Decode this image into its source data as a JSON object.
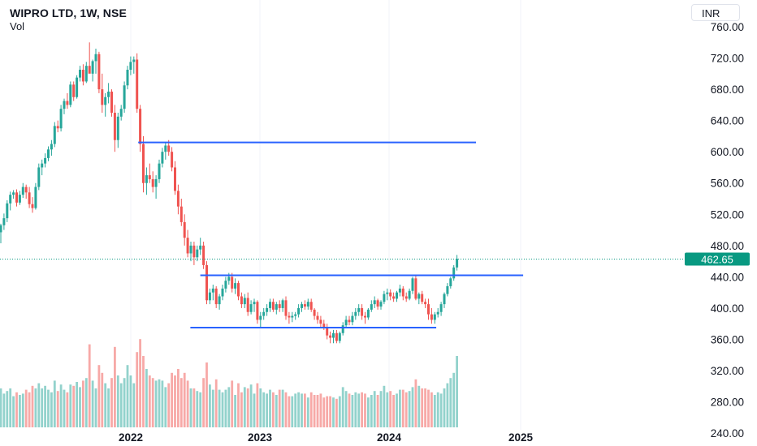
{
  "header": {
    "title": "WIPRO LTD, 1W, NSE",
    "volume_label": "Vol",
    "currency": "INR"
  },
  "colors": {
    "up": "#26a69a",
    "down": "#ef5350",
    "line": "#2962ff",
    "price_label": "#089981",
    "vol_up": "#26a69a",
    "vol_down": "#ef5350"
  },
  "chart_data": {
    "type": "candlestick",
    "x_ticks": [
      "2022",
      "2023",
      "2024",
      "2025"
    ],
    "y_ticks": [
      "760.00",
      "720.00",
      "680.00",
      "640.00",
      "600.00",
      "560.00",
      "520.00",
      "480.00",
      "440.00",
      "400.00",
      "360.00",
      "320.00",
      "280.00",
      "240.00"
    ],
    "ylim": [
      230,
      770
    ],
    "last_price": "462.65",
    "horizontal_lines": [
      {
        "name": "resistance-high",
        "y": 612,
        "x_from": "2022-01-24",
        "x_to": "2024-09-02"
      },
      {
        "name": "neckline",
        "y": 442,
        "x_from": "2022-07-18",
        "x_to": "2025-01-13"
      },
      {
        "name": "support-low",
        "y": 375,
        "x_from": "2022-06-20",
        "x_to": "2024-05-13"
      }
    ],
    "candles": [
      [
        497,
        508,
        483,
        506,
        0.3
      ],
      [
        506,
        521,
        500,
        515,
        0.26
      ],
      [
        515,
        538,
        510,
        534,
        0.28
      ],
      [
        534,
        549,
        525,
        545,
        0.3
      ],
      [
        545,
        551,
        540,
        548,
        0.24
      ],
      [
        548,
        552,
        530,
        535,
        0.27
      ],
      [
        535,
        550,
        532,
        545,
        0.25
      ],
      [
        545,
        560,
        541,
        555,
        0.26
      ],
      [
        555,
        558,
        540,
        548,
        0.29
      ],
      [
        548,
        555,
        528,
        533,
        0.27
      ],
      [
        533,
        542,
        522,
        528,
        0.32
      ],
      [
        528,
        560,
        526,
        555,
        0.3
      ],
      [
        555,
        585,
        551,
        580,
        0.34
      ],
      [
        580,
        590,
        570,
        585,
        0.3
      ],
      [
        585,
        598,
        580,
        592,
        0.32
      ],
      [
        592,
        607,
        588,
        603,
        0.29
      ],
      [
        603,
        615,
        595,
        610,
        0.27
      ],
      [
        610,
        638,
        606,
        633,
        0.36
      ],
      [
        633,
        640,
        625,
        630,
        0.28
      ],
      [
        630,
        660,
        626,
        655,
        0.33
      ],
      [
        655,
        668,
        648,
        665,
        0.29
      ],
      [
        665,
        675,
        655,
        660,
        0.27
      ],
      [
        660,
        690,
        657,
        686,
        0.33
      ],
      [
        686,
        690,
        665,
        670,
        0.32
      ],
      [
        670,
        698,
        668,
        695,
        0.35
      ],
      [
        695,
        710,
        690,
        705,
        0.31
      ],
      [
        705,
        712,
        685,
        690,
        0.36
      ],
      [
        690,
        715,
        688,
        710,
        0.38
      ],
      [
        710,
        740,
        705,
        700,
        0.64
      ],
      [
        700,
        718,
        690,
        716,
        0.36
      ],
      [
        716,
        732,
        700,
        725,
        0.3
      ],
      [
        725,
        728,
        675,
        680,
        0.48
      ],
      [
        680,
        700,
        650,
        660,
        0.42
      ],
      [
        660,
        675,
        645,
        670,
        0.34
      ],
      [
        670,
        688,
        662,
        677,
        0.3
      ],
      [
        677,
        680,
        645,
        650,
        0.38
      ],
      [
        650,
        660,
        600,
        615,
        0.62
      ],
      [
        615,
        650,
        605,
        645,
        0.4
      ],
      [
        645,
        660,
        640,
        655,
        0.34
      ],
      [
        655,
        690,
        650,
        685,
        0.38
      ],
      [
        685,
        710,
        680,
        705,
        0.48
      ],
      [
        705,
        722,
        698,
        715,
        0.4
      ],
      [
        715,
        722,
        700,
        718,
        0.34
      ],
      [
        718,
        726,
        650,
        655,
        0.58
      ],
      [
        655,
        660,
        600,
        610,
        0.68
      ],
      [
        610,
        620,
        548,
        560,
        0.55
      ],
      [
        560,
        580,
        545,
        570,
        0.45
      ],
      [
        570,
        585,
        560,
        565,
        0.4
      ],
      [
        565,
        575,
        548,
        555,
        0.38
      ],
      [
        555,
        570,
        540,
        565,
        0.36
      ],
      [
        565,
        590,
        560,
        585,
        0.37
      ],
      [
        585,
        605,
        580,
        600,
        0.36
      ],
      [
        600,
        612,
        590,
        608,
        0.31
      ],
      [
        608,
        615,
        595,
        600,
        0.34
      ],
      [
        600,
        606,
        575,
        580,
        0.42
      ],
      [
        580,
        588,
        545,
        550,
        0.4
      ],
      [
        550,
        558,
        520,
        530,
        0.45
      ],
      [
        530,
        540,
        505,
        510,
        0.38
      ],
      [
        510,
        520,
        480,
        490,
        0.42
      ],
      [
        490,
        500,
        465,
        470,
        0.36
      ],
      [
        470,
        485,
        460,
        480,
        0.3
      ],
      [
        480,
        485,
        455,
        465,
        0.3
      ],
      [
        465,
        480,
        460,
        475,
        0.28
      ],
      [
        475,
        490,
        468,
        480,
        0.27
      ],
      [
        480,
        485,
        450,
        455,
        0.38
      ],
      [
        455,
        460,
        405,
        410,
        0.5
      ],
      [
        410,
        425,
        405,
        420,
        0.33
      ],
      [
        420,
        430,
        410,
        425,
        0.29
      ],
      [
        425,
        428,
        400,
        405,
        0.37
      ],
      [
        405,
        418,
        398,
        415,
        0.29
      ],
      [
        415,
        430,
        410,
        425,
        0.27
      ],
      [
        425,
        440,
        420,
        435,
        0.29
      ],
      [
        435,
        445,
        430,
        440,
        0.31
      ],
      [
        440,
        445,
        420,
        425,
        0.36
      ],
      [
        425,
        438,
        418,
        432,
        0.25
      ],
      [
        432,
        435,
        410,
        415,
        0.34
      ],
      [
        415,
        420,
        400,
        405,
        0.27
      ],
      [
        405,
        418,
        400,
        413,
        0.31
      ],
      [
        413,
        420,
        390,
        395,
        0.3
      ],
      [
        395,
        410,
        392,
        405,
        0.33
      ],
      [
        405,
        412,
        395,
        408,
        0.26
      ],
      [
        408,
        410,
        380,
        385,
        0.34
      ],
      [
        385,
        395,
        375,
        390,
        0.3
      ],
      [
        390,
        400,
        385,
        395,
        0.27
      ],
      [
        395,
        405,
        390,
        400,
        0.26
      ],
      [
        400,
        412,
        395,
        408,
        0.29
      ],
      [
        408,
        412,
        395,
        398,
        0.27
      ],
      [
        398,
        408,
        392,
        405,
        0.25
      ],
      [
        405,
        410,
        395,
        400,
        0.29
      ],
      [
        400,
        412,
        395,
        410,
        0.29
      ],
      [
        410,
        415,
        385,
        390,
        0.27
      ],
      [
        390,
        395,
        380,
        388,
        0.24
      ],
      [
        388,
        395,
        382,
        390,
        0.24
      ],
      [
        390,
        395,
        385,
        392,
        0.26
      ],
      [
        392,
        405,
        388,
        400,
        0.27
      ],
      [
        400,
        408,
        395,
        405,
        0.26
      ],
      [
        405,
        410,
        398,
        402,
        0.26
      ],
      [
        402,
        412,
        398,
        408,
        0.23
      ],
      [
        408,
        412,
        395,
        398,
        0.27
      ],
      [
        398,
        400,
        385,
        390,
        0.25
      ],
      [
        390,
        395,
        380,
        385,
        0.25
      ],
      [
        385,
        390,
        375,
        380,
        0.26
      ],
      [
        380,
        385,
        372,
        375,
        0.23
      ],
      [
        375,
        380,
        360,
        365,
        0.24
      ],
      [
        365,
        370,
        355,
        362,
        0.24
      ],
      [
        362,
        372,
        355,
        368,
        0.23
      ],
      [
        368,
        372,
        355,
        358,
        0.22
      ],
      [
        358,
        370,
        355,
        368,
        0.24
      ],
      [
        368,
        382,
        365,
        378,
        0.31
      ],
      [
        378,
        390,
        375,
        385,
        0.28
      ],
      [
        385,
        390,
        378,
        382,
        0.26
      ],
      [
        382,
        395,
        378,
        390,
        0.25
      ],
      [
        390,
        400,
        385,
        395,
        0.27
      ],
      [
        395,
        405,
        390,
        400,
        0.26
      ],
      [
        400,
        405,
        385,
        390,
        0.27
      ],
      [
        390,
        395,
        380,
        388,
        0.26
      ],
      [
        388,
        400,
        385,
        398,
        0.23
      ],
      [
        398,
        410,
        395,
        405,
        0.25
      ],
      [
        405,
        415,
        400,
        410,
        0.28
      ],
      [
        410,
        412,
        398,
        402,
        0.25
      ],
      [
        402,
        410,
        398,
        408,
        0.28
      ],
      [
        408,
        422,
        405,
        418,
        0.32
      ],
      [
        418,
        425,
        410,
        420,
        0.27
      ],
      [
        420,
        424,
        410,
        415,
        0.28
      ],
      [
        415,
        420,
        408,
        412,
        0.25
      ],
      [
        412,
        422,
        408,
        420,
        0.26
      ],
      [
        420,
        430,
        415,
        425,
        0.29
      ],
      [
        425,
        428,
        410,
        415,
        0.29
      ],
      [
        415,
        420,
        408,
        412,
        0.27
      ],
      [
        412,
        425,
        410,
        422,
        0.28
      ],
      [
        422,
        440,
        418,
        438,
        0.31
      ],
      [
        438,
        442,
        410,
        412,
        0.37
      ],
      [
        412,
        420,
        405,
        418,
        0.32
      ],
      [
        418,
        422,
        405,
        408,
        0.3
      ],
      [
        408,
        412,
        400,
        405,
        0.3
      ],
      [
        405,
        412,
        385,
        392,
        0.29
      ],
      [
        392,
        400,
        380,
        385,
        0.27
      ],
      [
        385,
        395,
        380,
        392,
        0.25
      ],
      [
        392,
        400,
        388,
        395,
        0.27
      ],
      [
        395,
        408,
        390,
        405,
        0.26
      ],
      [
        405,
        420,
        400,
        418,
        0.3
      ],
      [
        418,
        432,
        415,
        428,
        0.34
      ],
      [
        428,
        440,
        425,
        438,
        0.38
      ],
      [
        438,
        455,
        435,
        452,
        0.42
      ],
      [
        452,
        468,
        448,
        463,
        0.55
      ]
    ]
  }
}
